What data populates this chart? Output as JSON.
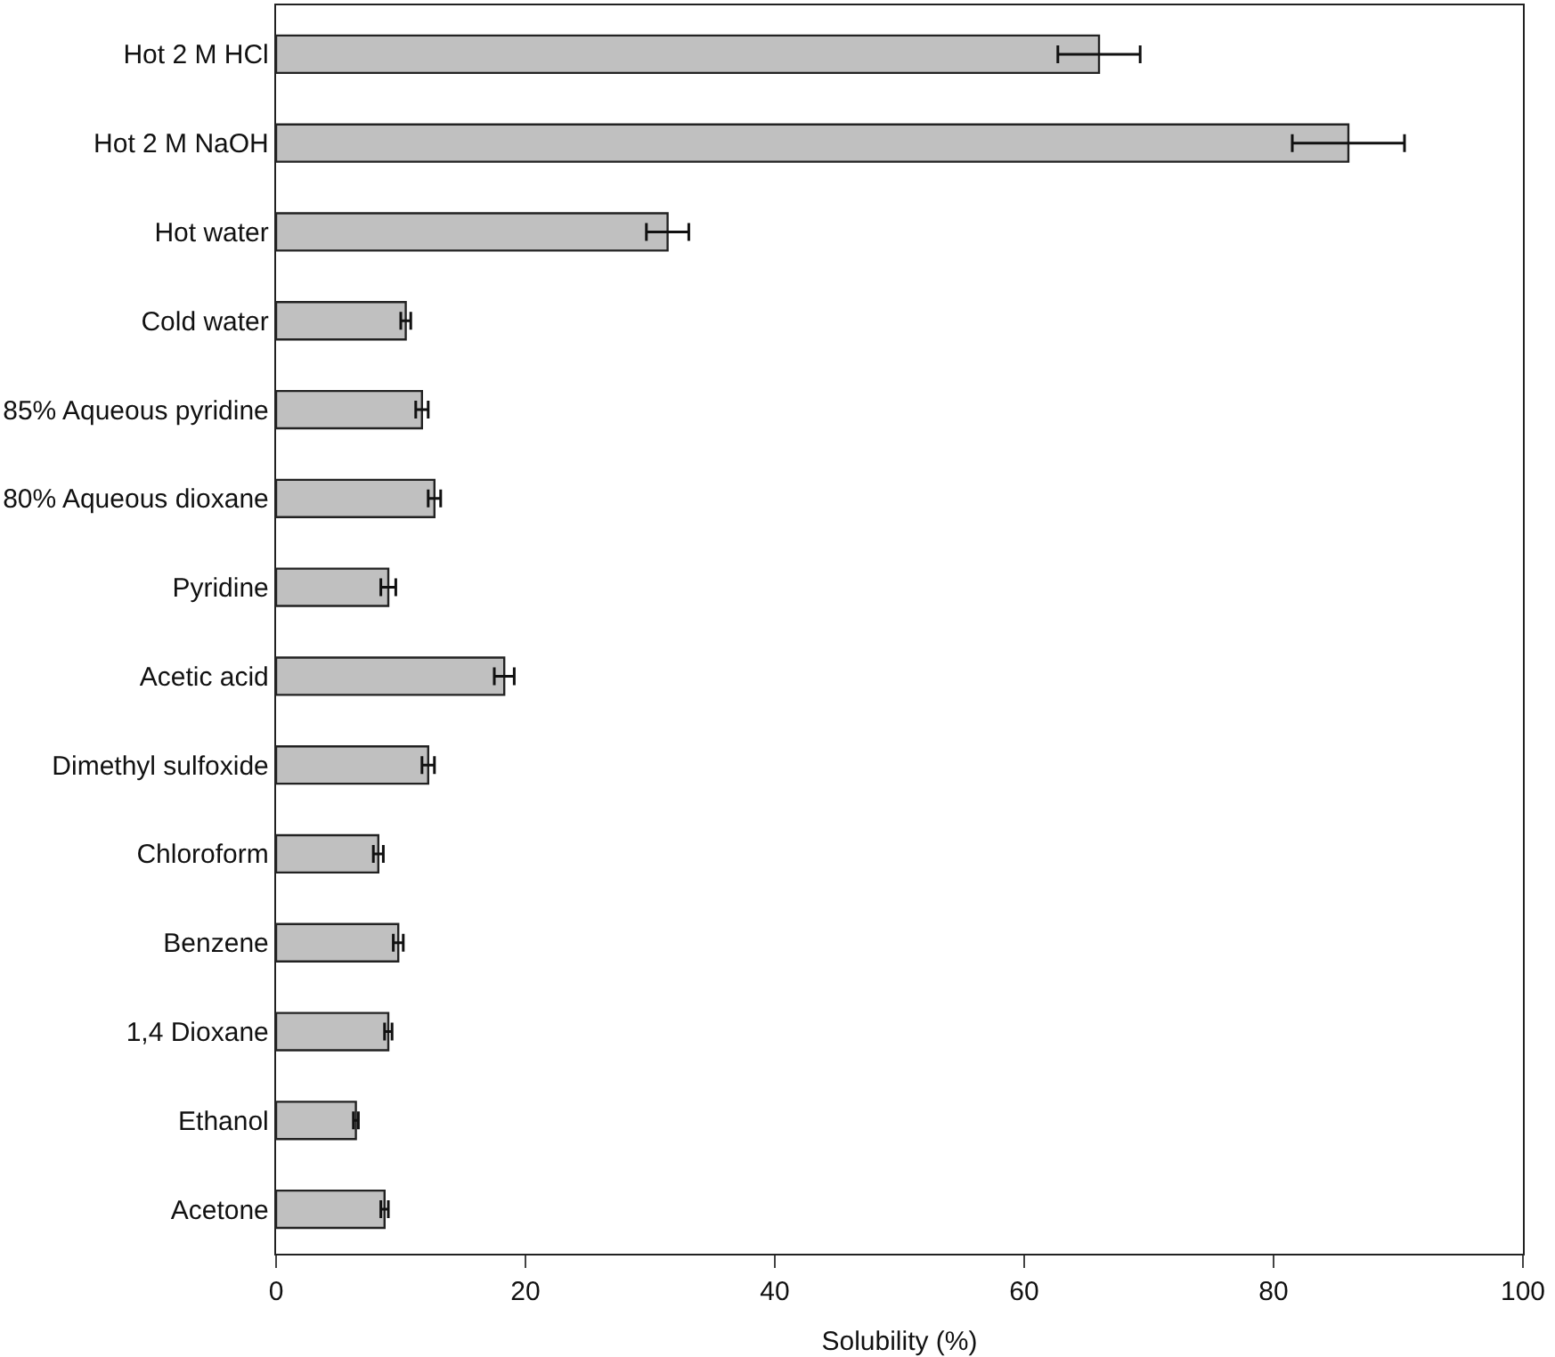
{
  "chart_data": {
    "type": "bar",
    "orientation": "horizontal",
    "xlabel": "Solubility (%)",
    "categories": [
      "Hot 2 M HCl",
      "Hot 2 M NaOH",
      "Hot water",
      "Cold water",
      "85% Aqueous pyridine",
      "80% Aqueous dioxane",
      "Pyridine",
      "Acetic acid",
      "Dimethyl sulfoxide",
      "Chloroform",
      "Benzene",
      "1,4 Dioxane",
      "Ethanol",
      "Acetone"
    ],
    "values": [
      66,
      86,
      31.4,
      10.4,
      11.7,
      12.7,
      9.0,
      18.3,
      12.2,
      8.2,
      9.8,
      9.0,
      6.4,
      8.7
    ],
    "errors": [
      3.3,
      4.5,
      1.7,
      0.4,
      0.5,
      0.5,
      0.6,
      0.8,
      0.5,
      0.4,
      0.4,
      0.3,
      0.2,
      0.3
    ],
    "color": "#c0c0c0",
    "xlim": [
      0,
      100
    ],
    "xticks": [
      0,
      20,
      40,
      60,
      80,
      100
    ]
  }
}
